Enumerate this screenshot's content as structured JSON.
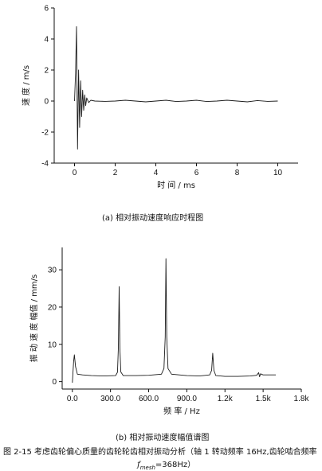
{
  "chart_data": [
    {
      "type": "line",
      "subtitle": "(a) 相对振动速度响应时程图",
      "xlabel": "时 间 / ms",
      "ylabel": "速 度 / m/s",
      "xlim": [
        -1.0,
        11.0
      ],
      "ylim": [
        -4,
        6
      ],
      "xticks": [
        "0",
        "2",
        "4",
        "6",
        "8",
        "10"
      ],
      "xtick_values": [
        0,
        2,
        4,
        6,
        8,
        10
      ],
      "yticks": [
        "-4",
        "-2",
        "0",
        "2",
        "4",
        "6"
      ],
      "ytick_values": [
        -4,
        -2,
        0,
        2,
        4,
        6
      ],
      "series": [
        {
          "x": [
            0.0,
            0.05,
            0.1,
            0.15,
            0.2,
            0.25,
            0.3,
            0.35,
            0.4,
            0.45,
            0.5,
            0.55,
            0.6,
            0.7,
            0.8,
            1.0,
            1.5,
            2.0,
            2.5,
            3.0,
            3.5,
            4.0,
            4.5,
            5.0,
            5.5,
            6.0,
            6.5,
            7.0,
            7.5,
            8.0,
            8.5,
            9.0,
            9.5,
            10.0
          ],
          "values": [
            0.0,
            1.8,
            4.8,
            -3.1,
            2.0,
            -1.7,
            1.3,
            -1.0,
            0.7,
            -0.6,
            0.4,
            -0.3,
            0.2,
            -0.1,
            0.05,
            0.0,
            -0.02,
            0.0,
            0.05,
            0.0,
            -0.05,
            0.0,
            0.05,
            -0.03,
            0.0,
            0.05,
            -0.03,
            0.0,
            0.05,
            0.0,
            -0.05,
            0.03,
            -0.02,
            0.0
          ]
        }
      ]
    },
    {
      "type": "line",
      "subtitle": "(b) 相对振动速度幅值谱图",
      "xlabel": "频 率 / Hz",
      "ylabel": "振 动 速 度 幅值 / mm/s",
      "xlim": [
        -80,
        1800
      ],
      "ylim": [
        -2,
        36
      ],
      "xticks": [
        "0.0",
        "300.0",
        "600.0",
        "900.0",
        "1.2k",
        "1.5k",
        "1.8k"
      ],
      "xtick_values": [
        0,
        300,
        600,
        900,
        1200,
        1500,
        1800
      ],
      "yticks": [
        "0",
        "10",
        "20",
        "30"
      ],
      "ytick_values": [
        0,
        10,
        20,
        30
      ],
      "series": [
        {
          "x": [
            0,
            10,
            16,
            25,
            40,
            80,
            150,
            250,
            340,
            355,
            362,
            368,
            374,
            381,
            400,
            500,
            600,
            700,
            720,
            730,
            736,
            742,
            752,
            780,
            900,
            1000,
            1080,
            1095,
            1104,
            1113,
            1128,
            1200,
            1300,
            1400,
            1450,
            1465,
            1472,
            1480,
            1500,
            1600
          ],
          "values": [
            -0.3,
            5.5,
            7.2,
            4.0,
            2.0,
            1.8,
            1.6,
            1.5,
            1.6,
            2.5,
            9.0,
            25.5,
            9.0,
            2.6,
            1.6,
            1.6,
            1.7,
            2.0,
            3.5,
            12.0,
            33.0,
            12.0,
            3.5,
            2.0,
            1.6,
            1.5,
            1.8,
            3.0,
            7.6,
            3.0,
            1.6,
            1.4,
            1.4,
            1.5,
            1.7,
            2.4,
            1.3,
            2.1,
            1.8,
            1.8
          ]
        }
      ]
    }
  ],
  "caption": {
    "line1": "图 2-15 考虑齿轮偏心质量的齿轮轮齿相对振动分析（轴 1 转动频率 16Hz,齿轮啮合频率",
    "fmesh_f": "f",
    "fmesh_sub": "mesh",
    "fmesh_value": "=368Hz）"
  },
  "colors": {
    "line": "#1a1a1a",
    "axis": "#111111",
    "paper": "#ffffff"
  }
}
